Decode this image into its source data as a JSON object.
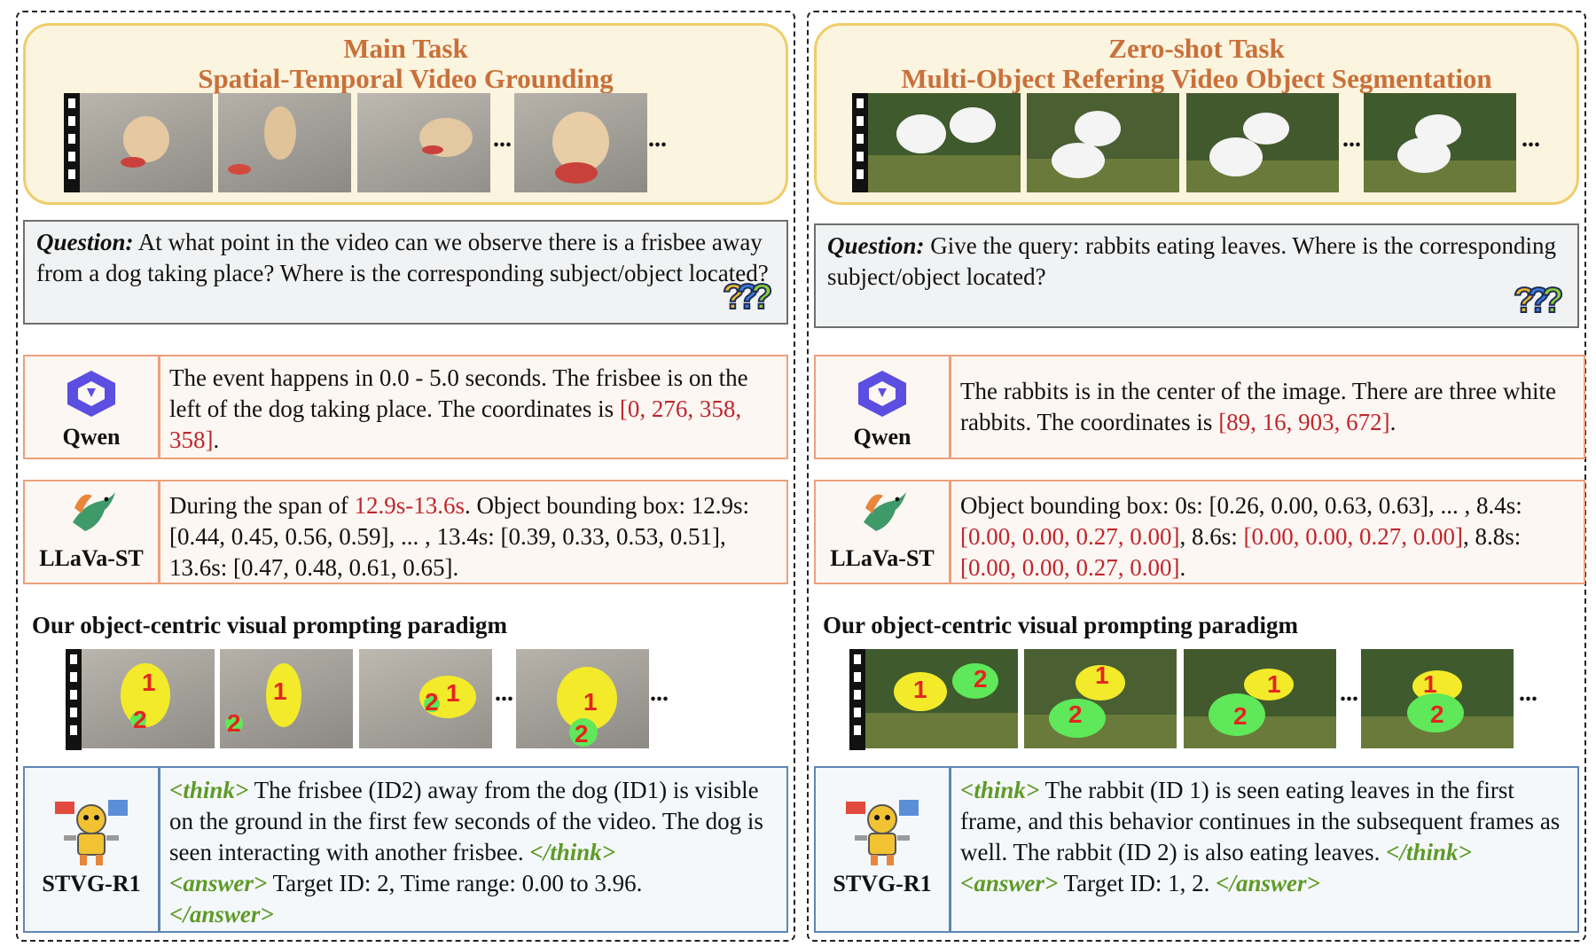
{
  "left": {
    "title_line1": "Main Task",
    "title_line2": "Spatial-Temporal Video Grounding",
    "question_label": "Question:",
    "question_text": "At what point in the video can we observe there is a frisbee away from a dog taking place? Where is the corresponding subject/object located?",
    "qwen": {
      "name": "Qwen",
      "text": "The event happens in 0.0 - 5.0 seconds. The frisbee is on the left of the dog taking place. The coordinates is ",
      "highlight": "[0, 276, 358, 358]",
      "tail": "."
    },
    "llava": {
      "name": "LLaVa-ST",
      "prefix": "During the span of ",
      "highlight": "12.9s-13.6s",
      "text": ". Object bounding box: 12.9s: [0.44, 0.45, 0.56, 0.59], ... , 13.4s: [0.39, 0.33, 0.53, 0.51], 13.6s: [0.47, 0.48, 0.61, 0.65]."
    },
    "paradigm_title": "Our object-centric visual prompting paradigm",
    "frame_labels": [
      {
        "id1": "1",
        "id2": "2"
      },
      {
        "id1": "1",
        "id2": "2"
      },
      {
        "id1": "1",
        "id2": "2"
      },
      {
        "id1": "1",
        "id2": "2"
      }
    ],
    "stvg": {
      "name": "STVG-R1",
      "think_open": "<think>",
      "think_text": " The frisbee (ID2) away from the dog (ID1) is visible on the ground in the first few seconds of the video. The dog is seen interacting with another frisbee. ",
      "think_close": "</think>",
      "answer_open": "<answer>",
      "answer_text": "  Target ID: 2, Time range: 0.00 to 3.96.",
      "answer_close": "</answer>"
    }
  },
  "right": {
    "title_line1": "Zero-shot Task",
    "title_line2": "Multi-Object Refering Video Object Segmentation",
    "question_label": "Question:",
    "question_text": "Give the query: rabbits eating leaves. Where is the corresponding subject/object located?",
    "qwen": {
      "name": "Qwen",
      "text": "The rabbits is in the center of the image. There are three white rabbits. The coordinates is ",
      "highlight": "[89, 16, 903, 672]",
      "tail": "."
    },
    "llava": {
      "name": "LLaVa-ST",
      "text1": "Object bounding box: 0s: [0.26, 0.00, 0.63, 0.63], ... , 8.4s: ",
      "hl1": "[0.00, 0.00, 0.27, 0.00]",
      "text2": ", 8.6s: ",
      "hl2": "[0.00, 0.00, 0.27, 0.00]",
      "text3": ", 8.8s: ",
      "hl3": "[0.00, 0.00, 0.27, 0.00]",
      "text4": "."
    },
    "paradigm_title": "Our object-centric visual prompting paradigm",
    "frame_labels": [
      {
        "id1": "1",
        "id2": "2"
      },
      {
        "id1": "1",
        "id2": "2"
      },
      {
        "id1": "1",
        "id2": "2"
      },
      {
        "id1": "1",
        "id2": "2"
      }
    ],
    "stvg": {
      "name": "STVG-R1",
      "think_open": "<think>",
      "think_text": " The rabbit (ID 1) is seen eating leaves in the first frame, and this behavior continues in the subsequent frames as well. The rabbit (ID 2) is also eating leaves. ",
      "think_close": "</think>",
      "answer_open": "<answer>",
      "answer_text": " Target ID: 1, 2. ",
      "answer_close": "</answer>"
    }
  },
  "ellipsis": "...",
  "colors": {
    "title": "#c9703a",
    "header_bg": "#fbf4df",
    "header_border": "#efcd6a",
    "response_border": "#eda07c",
    "stvg_border": "#5f86b3",
    "highlight_red": "#c0262c",
    "tag_green": "#5e9a27",
    "mask_yellow": "#f3ea2a",
    "mask_green": "#5ee85a"
  }
}
